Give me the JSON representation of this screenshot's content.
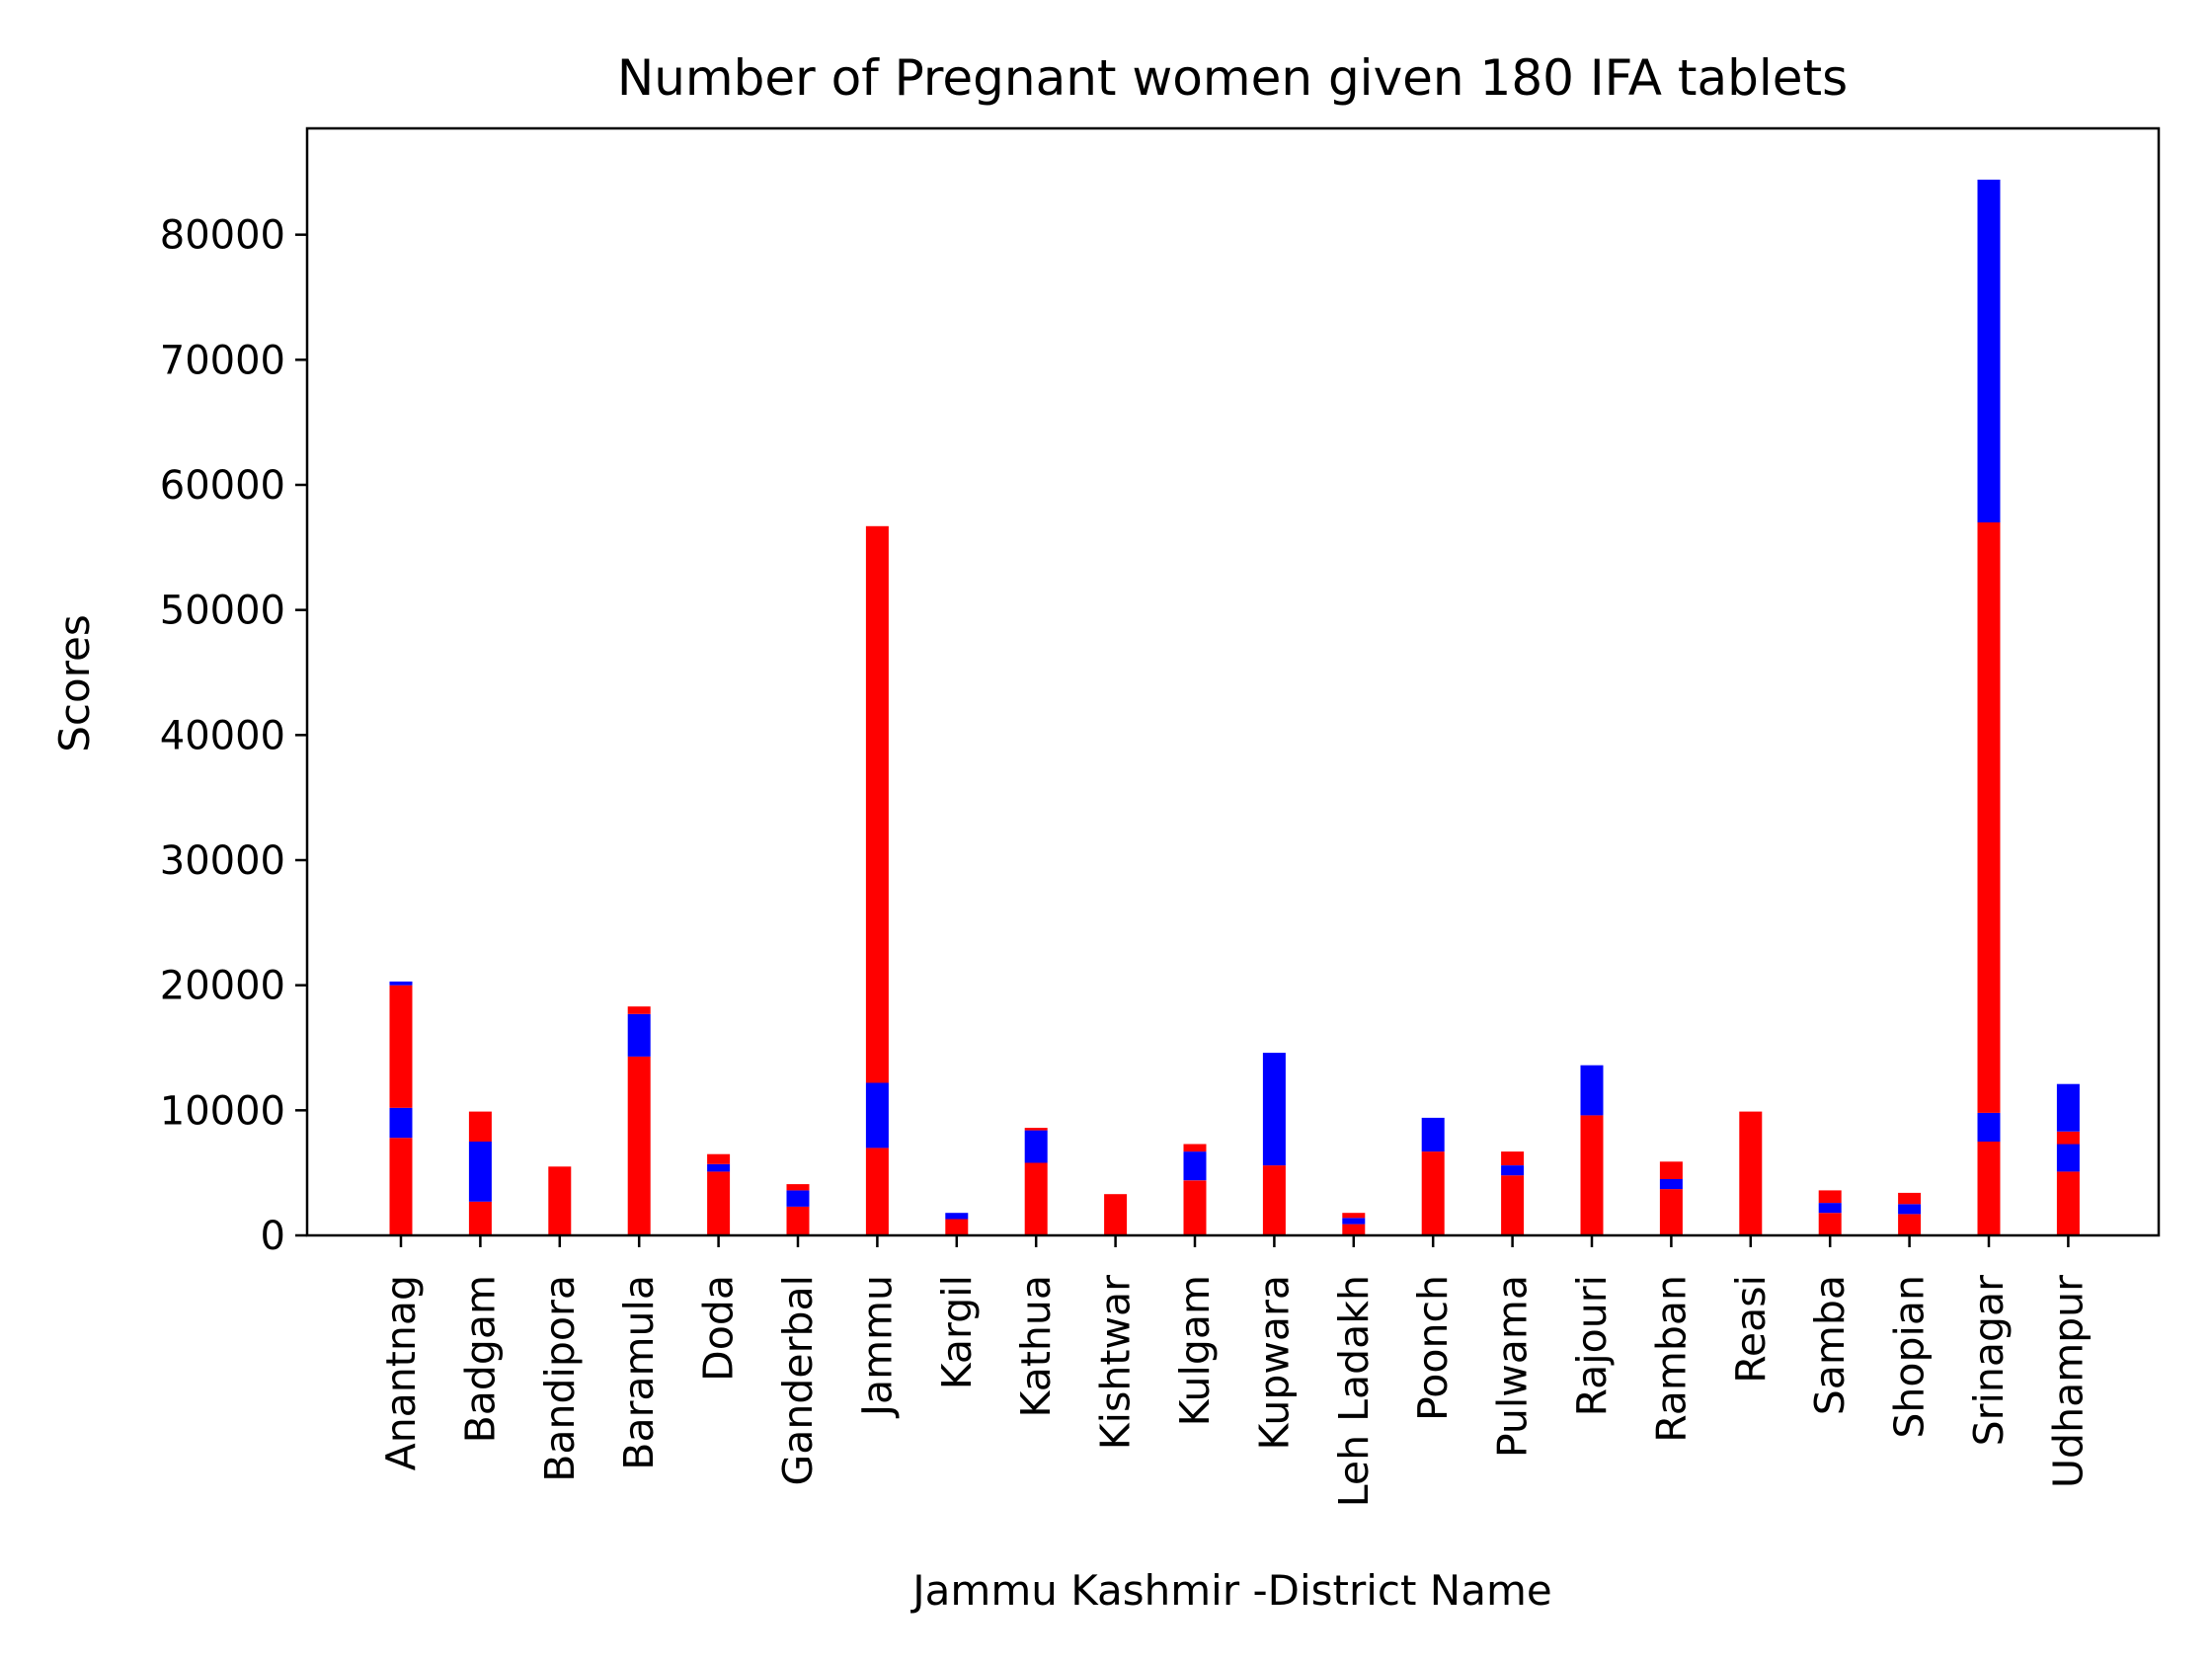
{
  "chart_data": {
    "type": "bar",
    "title": "Number of Pregnant women given 180 IFA tablets",
    "xlabel": "Jammu Kashmir -District Name",
    "ylabel": "Scores",
    "ylim": [
      0,
      88500
    ],
    "yticks": [
      "0",
      "10000",
      "20000",
      "30000",
      "40000",
      "50000",
      "60000",
      "70000",
      "80000"
    ],
    "grid": false,
    "legend": "none",
    "colors": {
      "red": "#ff0000",
      "blue": "#0000ff"
    },
    "categories": [
      "Anantnag",
      "Badgam",
      "Bandipora",
      "Baramula",
      "Doda",
      "Ganderbal",
      "Jammu",
      "Kargil",
      "Kathua",
      "Kishtwar",
      "Kulgam",
      "Kupwara",
      "Leh Ladakh",
      "Poonch",
      "Pulwama",
      "Rajouri",
      "Ramban",
      "Reasi",
      "Samba",
      "Shopian",
      "Srinagar",
      "Udhampur"
    ],
    "segments": [
      [
        [
          "red",
          0,
          7800
        ],
        [
          "blue",
          7800,
          10200
        ],
        [
          "red",
          10200,
          20000
        ],
        [
          "blue",
          20000,
          20300
        ]
      ],
      [
        [
          "red",
          0,
          2700
        ],
        [
          "blue",
          2700,
          7500
        ],
        [
          "red",
          7500,
          9900
        ]
      ],
      [
        [
          "red",
          0,
          5500
        ]
      ],
      [
        [
          "red",
          0,
          14300
        ],
        [
          "blue",
          14300,
          17700
        ],
        [
          "red",
          17700,
          18300
        ]
      ],
      [
        [
          "red",
          0,
          5100
        ],
        [
          "blue",
          5100,
          5700
        ],
        [
          "red",
          5700,
          6500
        ]
      ],
      [
        [
          "red",
          0,
          2300
        ],
        [
          "blue",
          2300,
          3600
        ],
        [
          "red",
          3600,
          4100
        ]
      ],
      [
        [
          "red",
          0,
          7000
        ],
        [
          "blue",
          7000,
          12200
        ],
        [
          "red",
          12200,
          56700
        ]
      ],
      [
        [
          "red",
          0,
          1300
        ],
        [
          "blue",
          1300,
          1800
        ]
      ],
      [
        [
          "red",
          0,
          5800
        ],
        [
          "blue",
          5800,
          8400
        ],
        [
          "red",
          8400,
          8600
        ]
      ],
      [
        [
          "red",
          0,
          3300
        ]
      ],
      [
        [
          "red",
          0,
          4400
        ],
        [
          "blue",
          4400,
          6700
        ],
        [
          "red",
          6700,
          7300
        ]
      ],
      [
        [
          "red",
          0,
          5600
        ],
        [
          "blue",
          5600,
          14600
        ]
      ],
      [
        [
          "red",
          0,
          900
        ],
        [
          "blue",
          900,
          1400
        ],
        [
          "red",
          1400,
          1800
        ]
      ],
      [
        [
          "red",
          0,
          6700
        ],
        [
          "blue",
          6700,
          9400
        ]
      ],
      [
        [
          "red",
          0,
          4800
        ],
        [
          "blue",
          4800,
          5600
        ],
        [
          "red",
          5600,
          6700
        ]
      ],
      [
        [
          "red",
          0,
          9600
        ],
        [
          "blue",
          9600,
          13600
        ]
      ],
      [
        [
          "red",
          0,
          3700
        ],
        [
          "blue",
          3700,
          4500
        ],
        [
          "red",
          4500,
          5900
        ]
      ],
      [
        [
          "red",
          0,
          9900
        ]
      ],
      [
        [
          "red",
          0,
          1800
        ],
        [
          "blue",
          1800,
          2600
        ],
        [
          "red",
          2600,
          3600
        ]
      ],
      [
        [
          "red",
          0,
          1700
        ],
        [
          "blue",
          1700,
          2500
        ],
        [
          "red",
          2500,
          3400
        ]
      ],
      [
        [
          "red",
          0,
          7500
        ],
        [
          "blue",
          7500,
          9800
        ],
        [
          "red",
          9800,
          57000
        ],
        [
          "blue",
          57000,
          84400
        ]
      ],
      [
        [
          "red",
          0,
          5100
        ],
        [
          "blue",
          5100,
          7300
        ],
        [
          "red",
          7300,
          8300
        ],
        [
          "blue",
          8300,
          12100
        ]
      ]
    ]
  }
}
